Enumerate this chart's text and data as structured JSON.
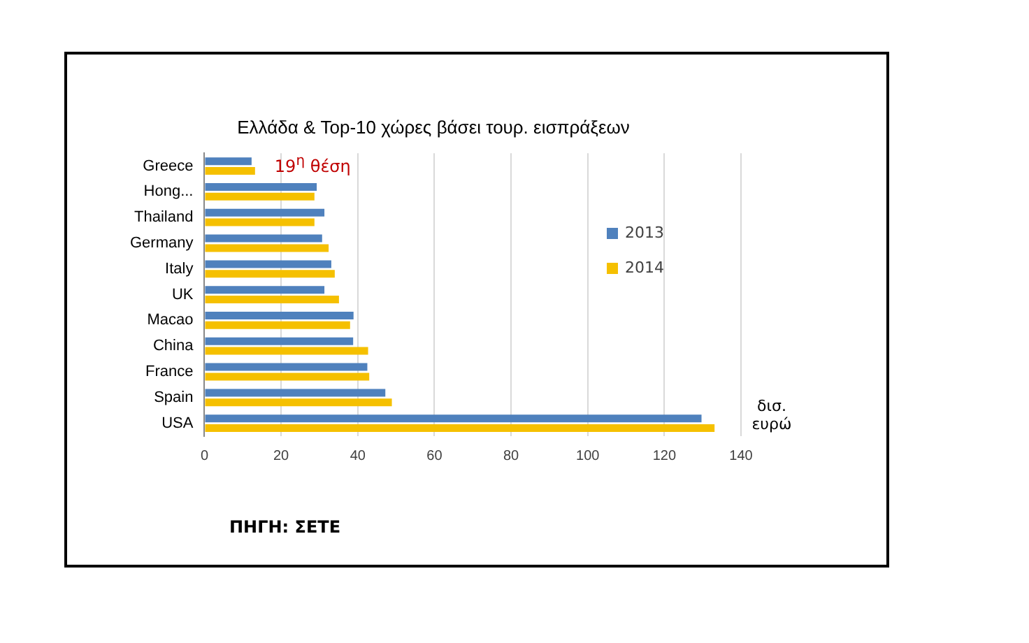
{
  "chart_data": {
    "type": "bar",
    "orientation": "horizontal",
    "title": "Ελλάδα & Top-10 χώρες βάσει τουρ. εισπράξεων",
    "xlabel": "δισ. ευρώ",
    "categories": [
      "Greece",
      "Hong...",
      "Thailand",
      "Germany",
      "Italy",
      "UK",
      "Macao",
      "China",
      "France",
      "Spain",
      "USA"
    ],
    "series": [
      {
        "name": "2013",
        "color": "#4f81bd",
        "values": [
          12.3,
          29.3,
          31.3,
          30.7,
          33.1,
          31.3,
          38.9,
          38.8,
          42.5,
          47.2,
          129.7
        ]
      },
      {
        "name": "2014",
        "color": "#f5c000",
        "values": [
          13.2,
          28.7,
          28.7,
          32.4,
          34,
          35.1,
          38,
          42.7,
          43,
          48.9,
          133.1
        ]
      }
    ],
    "xlim": [
      0,
      140
    ],
    "xticks": [
      0,
      20,
      40,
      60,
      80,
      100,
      120,
      140
    ],
    "grid": "x",
    "legend": "right",
    "annotations": [
      "19$^{η}$ θέση",
      "ΠΗΓΗ: ΣΕΤΕ"
    ]
  }
}
